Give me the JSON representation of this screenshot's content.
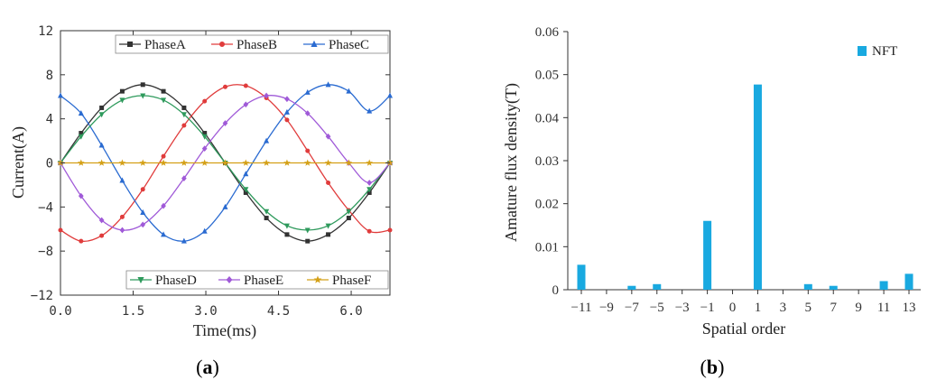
{
  "chart_data": [
    {
      "type": "line",
      "caption": "a",
      "xlabel": "Time(ms)",
      "ylabel": "Current(A)",
      "xlim": [
        0,
        6.8
      ],
      "ylim": [
        -12,
        12
      ],
      "xticks": [
        "0.0",
        "1.5",
        "3.0",
        "4.5",
        "6.0"
      ],
      "xtick_values": [
        0,
        1.5,
        3.0,
        4.5,
        6.0
      ],
      "yticks": [
        "12",
        "8",
        "4",
        "0",
        "−4",
        "−8",
        "−12"
      ],
      "ytick_values": [
        12,
        8,
        4,
        0,
        -4,
        -8,
        -12
      ],
      "grid": false,
      "legend_top": [
        "PhaseA",
        "PhaseB",
        "PhaseC"
      ],
      "legend_bottom": [
        "PhaseD",
        "PhaseE",
        "PhaseF"
      ],
      "legend_placement": "top and bottom",
      "series": [
        {
          "name": "PhaseA",
          "color": "#333333",
          "marker": "square",
          "x": [
            0,
            0.425,
            0.85,
            1.275,
            1.7,
            2.125,
            2.55,
            2.975,
            3.4,
            3.825,
            4.25,
            4.675,
            5.1,
            5.525,
            5.95,
            6.375,
            6.8
          ],
          "y": [
            0,
            2.7,
            5.0,
            6.5,
            7.1,
            6.5,
            5.0,
            2.7,
            0,
            -2.7,
            -5.0,
            -6.5,
            -7.1,
            -6.5,
            -5.0,
            -2.7,
            0
          ]
        },
        {
          "name": "PhaseB",
          "color": "#e03c3c",
          "marker": "circle",
          "x": [
            0,
            0.425,
            0.85,
            1.275,
            1.7,
            2.125,
            2.55,
            2.975,
            3.4,
            3.825,
            4.25,
            4.675,
            5.1,
            5.525,
            5.95,
            6.375,
            6.8
          ],
          "y": [
            -6.1,
            -7.1,
            -6.6,
            -4.9,
            -2.4,
            0.6,
            3.4,
            5.6,
            6.9,
            7.0,
            5.9,
            3.9,
            1.1,
            -1.8,
            -4.3,
            -6.2,
            -6.1
          ]
        },
        {
          "name": "PhaseC",
          "color": "#2a6bd1",
          "marker": "triangle",
          "x": [
            0,
            0.425,
            0.85,
            1.275,
            1.7,
            2.125,
            2.55,
            2.975,
            3.4,
            3.825,
            4.25,
            4.675,
            5.1,
            5.525,
            5.95,
            6.375,
            6.8
          ],
          "y": [
            6.1,
            4.5,
            1.6,
            -1.6,
            -4.5,
            -6.5,
            -7.1,
            -6.2,
            -4.0,
            -1.0,
            2.0,
            4.6,
            6.4,
            7.1,
            6.5,
            4.7,
            6.1
          ]
        },
        {
          "name": "PhaseD",
          "color": "#2e9a5c",
          "marker": "triangle-down",
          "x": [
            0,
            0.425,
            0.85,
            1.275,
            1.7,
            2.125,
            2.55,
            2.975,
            3.4,
            3.825,
            4.25,
            4.675,
            5.1,
            5.525,
            5.95,
            6.375,
            6.8
          ],
          "y": [
            0,
            2.4,
            4.4,
            5.7,
            6.1,
            5.7,
            4.4,
            2.4,
            0,
            -2.4,
            -4.4,
            -5.7,
            -6.1,
            -5.7,
            -4.4,
            -2.4,
            0
          ]
        },
        {
          "name": "PhaseE",
          "color": "#a05ad8",
          "marker": "diamond",
          "x": [
            0,
            0.425,
            0.85,
            1.275,
            1.7,
            2.125,
            2.55,
            2.975,
            3.4,
            3.825,
            4.25,
            4.675,
            5.1,
            5.525,
            5.95,
            6.375,
            6.8
          ],
          "y": [
            0,
            -3.0,
            -5.2,
            -6.1,
            -5.6,
            -3.9,
            -1.4,
            1.3,
            3.6,
            5.3,
            6.1,
            5.8,
            4.5,
            2.4,
            0,
            -1.8,
            0
          ]
        },
        {
          "name": "PhaseF",
          "color": "#d4a017",
          "marker": "star",
          "x": [
            0,
            0.425,
            0.85,
            1.275,
            1.7,
            2.125,
            2.55,
            2.975,
            3.4,
            3.825,
            4.25,
            4.675,
            5.1,
            5.525,
            5.95,
            6.375,
            6.8
          ],
          "y": [
            0,
            0,
            0,
            0,
            0,
            0,
            0,
            0,
            0,
            0,
            0,
            0,
            0,
            0,
            0,
            0,
            0
          ]
        }
      ]
    },
    {
      "type": "bar",
      "caption": "b",
      "xlabel": "Spatial order",
      "ylabel": "Amature flux density(T)",
      "ylim": [
        0,
        0.06
      ],
      "yticks": [
        "0.06",
        "0.05",
        "0.04",
        "0.03",
        "0.02",
        "0.01",
        "0"
      ],
      "ytick_values": [
        0.06,
        0.05,
        0.04,
        0.03,
        0.02,
        0.01,
        0
      ],
      "grid": false,
      "legend_placement": "top-right",
      "categories": [
        "−11",
        "−9",
        "−7",
        "−5",
        "−3",
        "−1",
        "0",
        "1",
        "3",
        "5",
        "7",
        "9",
        "11",
        "13"
      ],
      "series": [
        {
          "name": "NFT",
          "color": "#19a9e0",
          "values": [
            0.0058,
            0,
            0.0009,
            0.0013,
            0,
            0.016,
            0,
            0.0477,
            0,
            0.0013,
            0.0009,
            0,
            0.002,
            0.0037
          ]
        }
      ]
    }
  ]
}
